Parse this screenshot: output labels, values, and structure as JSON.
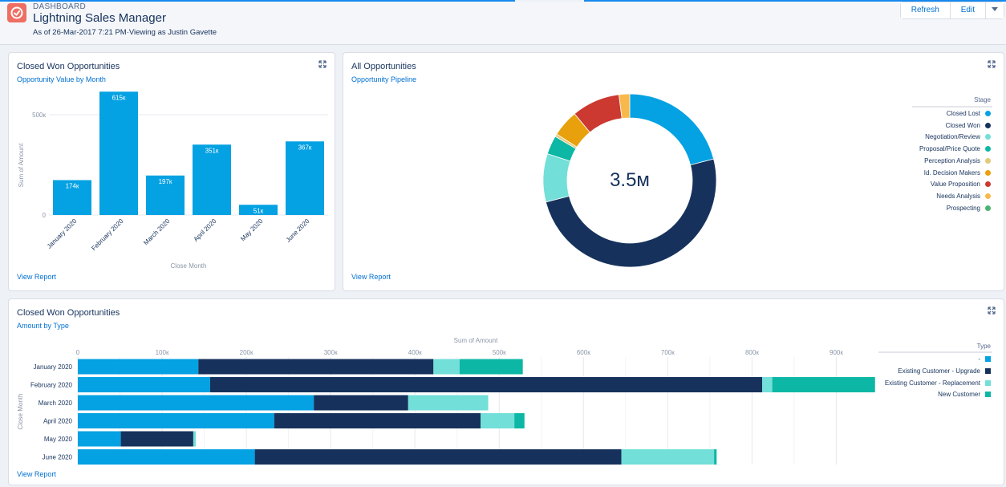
{
  "header": {
    "subtitle": "DASHBOARD",
    "title": "Lightning Sales Manager",
    "meta": "As of 26-Mar-2017 7:21 PM·Viewing as Justin Gavette",
    "refresh_label": "Refresh",
    "edit_label": "Edit",
    "dropdown_icon": "chevron-down-icon"
  },
  "colors": {
    "primary_bar": "#04a1e3",
    "dark_navy": "#16325c",
    "light_teal": "#72dfd8",
    "teal": "#0db7a5",
    "link": "#0070d2"
  },
  "card1": {
    "title": "Closed Won Opportunities",
    "subtitle": "Opportunity Value by Month",
    "view_report": "View Report",
    "chart_data": {
      "type": "bar",
      "categories": [
        "January 2020",
        "February 2020",
        "March 2020",
        "April 2020",
        "May 2020",
        "June 2020"
      ],
      "values": [
        174,
        615,
        197,
        351,
        51,
        367
      ],
      "value_labels": [
        "174к",
        "615к",
        "197к",
        "351к",
        "51к",
        "367к"
      ],
      "xlabel": "Close Month",
      "ylabel": "Sum of Amount",
      "yticks": [
        0,
        500
      ],
      "ytick_labels": [
        "0",
        "500к"
      ],
      "ylim": [
        0,
        640
      ],
      "grid": true
    }
  },
  "card2": {
    "title": "All Opportunities",
    "subtitle": "Opportunity Pipeline",
    "view_report": "View Report",
    "chart_data": {
      "type": "pie",
      "center_label": "3.5м",
      "legend_title": "Stage",
      "slices": [
        {
          "name": "Closed Lost",
          "value": 21,
          "color": "#04a1e3"
        },
        {
          "name": "Closed Won",
          "value": 50,
          "color": "#16325c"
        },
        {
          "name": "Negotiation/Review",
          "value": 9,
          "color": "#72dfd8"
        },
        {
          "name": "Proposal/Price Quote",
          "value": 3.5,
          "color": "#0db7a5"
        },
        {
          "name": "Perception Analysis",
          "value": 0.5,
          "color": "#e3c97a"
        },
        {
          "name": "Id. Decision Makers",
          "value": 5,
          "color": "#e8a10c"
        },
        {
          "name": "Value Proposition",
          "value": 9,
          "color": "#cb3931"
        },
        {
          "name": "Needs Analysis",
          "value": 2,
          "color": "#f9b94a"
        },
        {
          "name": "Prospecting",
          "value": 0,
          "color": "#4ab471"
        }
      ]
    }
  },
  "card3": {
    "title": "Closed Won Opportunities",
    "subtitle": "Amount by Type",
    "view_report": "View Report",
    "chart_data": {
      "type": "bar",
      "orientation": "horizontal",
      "stacked": true,
      "categories": [
        "January 2020",
        "February 2020",
        "March 2020",
        "April 2020",
        "May 2020",
        "June 2020"
      ],
      "xlabel": "Sum of Amount",
      "ylabel": "Close Month",
      "xticks": [
        0,
        100,
        200,
        300,
        400,
        500,
        600,
        700,
        800,
        900
      ],
      "xtick_labels": [
        "0",
        "100к",
        "200к",
        "300к",
        "400к",
        "500к",
        "600к",
        "700к",
        "800к",
        "900к"
      ],
      "xlim": [
        0,
        945
      ],
      "legend_title": "Type",
      "series": [
        {
          "name": "-",
          "color": "#04a1e3",
          "values": [
            143,
            157,
            280,
            233,
            51,
            210
          ]
        },
        {
          "name": "Existing Customer - Upgrade",
          "color": "#16325c",
          "values": [
            279,
            655,
            112,
            245,
            86,
            435
          ]
        },
        {
          "name": "Existing Customer - Replacement",
          "color": "#72dfd8",
          "values": [
            31,
            12,
            95,
            40,
            3,
            110
          ]
        },
        {
          "name": "New Customer",
          "color": "#0db7a5",
          "values": [
            75,
            122,
            0,
            12,
            0,
            3
          ]
        }
      ]
    }
  }
}
